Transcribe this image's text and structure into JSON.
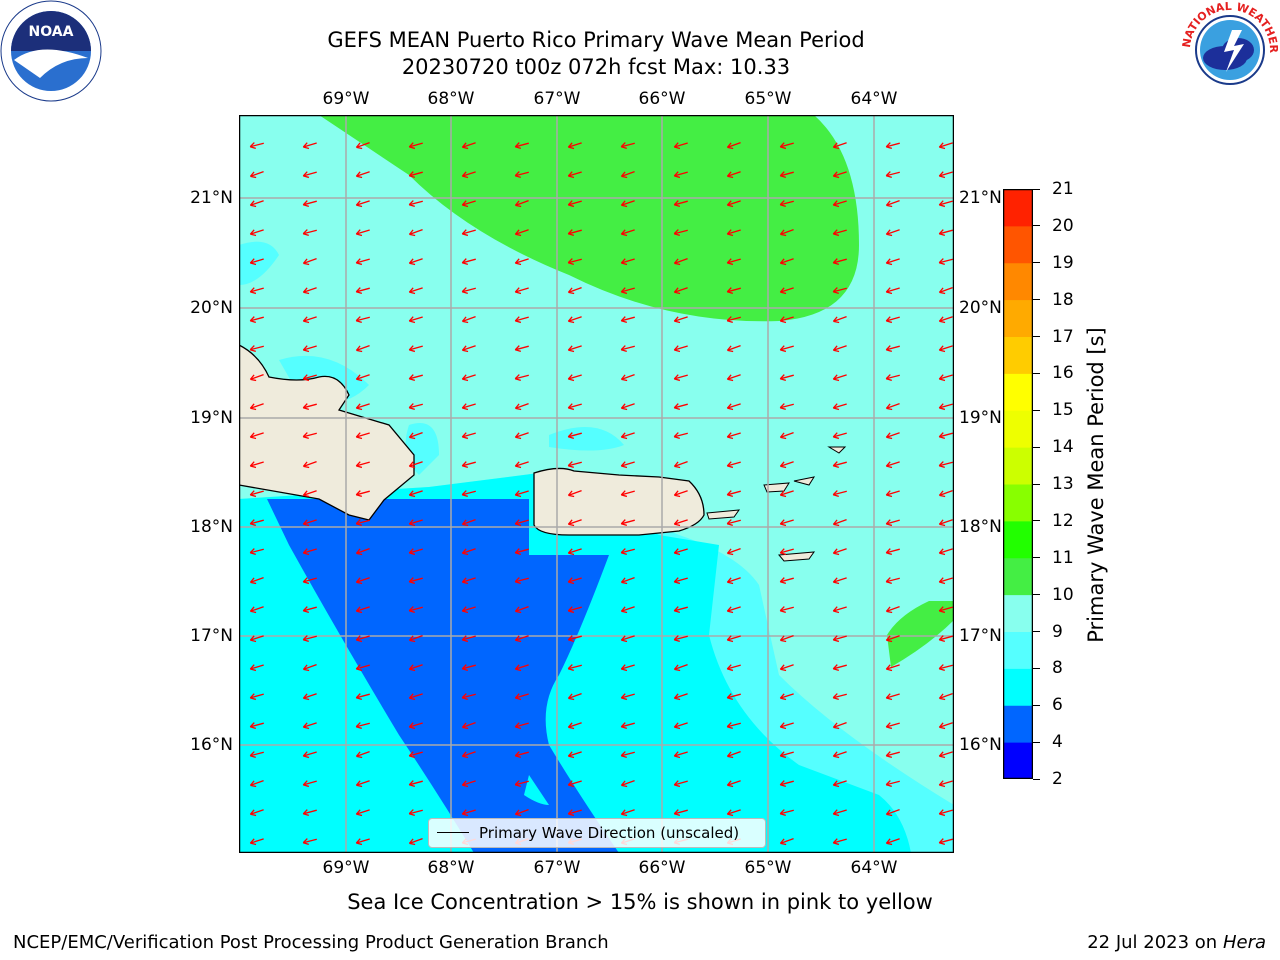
{
  "title": {
    "line1": "GEFS MEAN Puerto Rico Primary Wave Mean Period",
    "line2": "20230720 t00z 072h fcst   Max: 10.33"
  },
  "logos": {
    "noaa": {
      "icon": "noaa-logo",
      "text": "NOAA"
    },
    "nws": {
      "icon": "nws-logo",
      "text": "NATIONAL WEATHER SERVICE"
    }
  },
  "map": {
    "lon_labels": [
      "69°W",
      "68°W",
      "67°W",
      "66°W",
      "65°W",
      "64°W"
    ],
    "lat_labels": [
      "21°N",
      "20°N",
      "19°N",
      "18°N",
      "17°N",
      "16°N"
    ],
    "arrow_color": "#ff0000",
    "legend": "Primary Wave Direction (unscaled)"
  },
  "colorbar": {
    "label": "Primary Wave Mean Period [s]",
    "ticks": [
      "2",
      "4",
      "6",
      "8",
      "9",
      "10",
      "11",
      "12",
      "13",
      "14",
      "15",
      "16",
      "17",
      "18",
      "19",
      "20",
      "21"
    ],
    "colors": [
      "#0000ff",
      "#0066ff",
      "#00ffff",
      "#55ffff",
      "#88ffee",
      "#44ee44",
      "#22ff00",
      "#88ff00",
      "#ccff00",
      "#eeff00",
      "#ffff00",
      "#ffcc00",
      "#ffaa00",
      "#ff8800",
      "#ff5500",
      "#ff2200"
    ]
  },
  "note": "Sea Ice Concentration > 15% is shown in pink to yellow",
  "footer": {
    "left": "NCEP/EMC/Verification Post Processing Product Generation Branch",
    "right_prefix": "22 Jul 2023 on ",
    "right_host": "Hera"
  }
}
